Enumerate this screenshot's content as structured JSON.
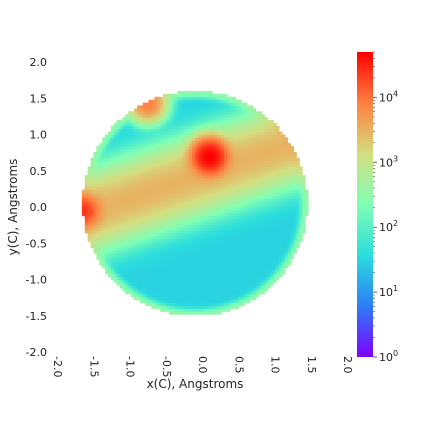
{
  "chart_data": {
    "type": "heatmap",
    "title": "",
    "xlabel": "x(C), Angstroms",
    "ylabel": "y(C), Angstroms",
    "xlim": [
      -2.0,
      2.0
    ],
    "ylim": [
      -2.0,
      2.0
    ],
    "x_ticks": [
      -2.0,
      -1.5,
      -1.0,
      -0.5,
      0.0,
      0.5,
      1.0,
      1.5,
      2.0
    ],
    "y_ticks": [
      -2.0,
      -1.5,
      -1.0,
      -0.5,
      0.0,
      0.5,
      1.0,
      1.5,
      2.0
    ],
    "x_tick_labels": [
      "-2.0",
      "-1.5",
      "-1.0",
      "-0.5",
      "0.0",
      "0.5",
      "1.0",
      "1.5",
      "2.0"
    ],
    "y_tick_labels": [
      "-2.0",
      "-1.5",
      "-1.0",
      "-0.5",
      "0.0",
      "0.5",
      "1.0",
      "1.5",
      "2.0"
    ],
    "grid": false,
    "colorbar": {
      "scale": "log",
      "colormap": "rainbow",
      "range": [
        1,
        50000
      ],
      "ticks": [
        1,
        10,
        100,
        1000,
        10000
      ],
      "tick_base": [
        "10",
        "10",
        "10",
        "10",
        "10"
      ],
      "tick_exponents": [
        "0",
        "1",
        "2",
        "3",
        "4"
      ],
      "colors": [
        "#8000ff",
        "#2c7ef7",
        "#2adddd",
        "#80ffb4",
        "#d4dd80",
        "#ff8040",
        "#ff0000"
      ]
    },
    "density_features": {
      "disk_center": [
        0.0,
        0.05
      ],
      "disk_radius": 1.55,
      "band": {
        "from": [
          -1.55,
          -0.1
        ],
        "to": [
          1.4,
          0.9
        ],
        "center_count": 3000
      },
      "peaks": [
        {
          "x": 0.2,
          "y": 0.7,
          "count": 50000
        },
        {
          "x": -1.55,
          "y": -0.05,
          "count": 20000
        },
        {
          "x": -0.65,
          "y": 1.43,
          "count": 8000
        }
      ],
      "background_count": 30,
      "edge_ring_count": 300
    }
  }
}
